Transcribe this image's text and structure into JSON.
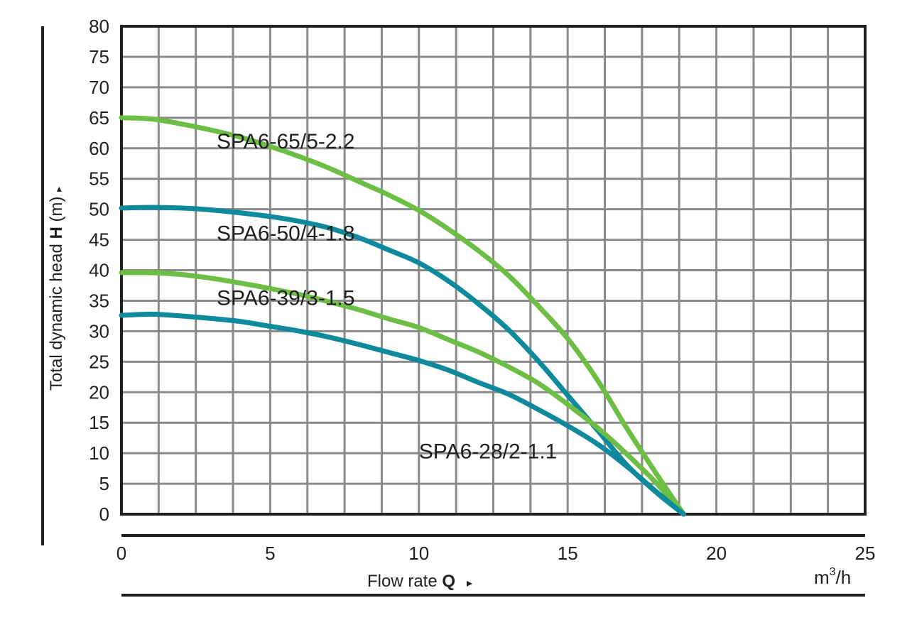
{
  "chart_data": {
    "type": "line",
    "x_axis": {
      "label_text": "Flow rate ",
      "label_symbol": "Q",
      "label_arrow": "▸",
      "unit_base": "m",
      "unit_sup": "3",
      "unit_tail": "/h",
      "range": [
        0,
        25
      ],
      "ticks": [
        0,
        5,
        10,
        15,
        20,
        25
      ],
      "grid_step": 1.25
    },
    "y_axis": {
      "label_text": "Total dynamic head ",
      "label_symbol": "H",
      "label_unit": " (m) ",
      "label_arrow": "▸",
      "range": [
        0,
        80
      ],
      "ticks": [
        0,
        5,
        10,
        15,
        20,
        25,
        30,
        35,
        40,
        45,
        50,
        55,
        60,
        65,
        70,
        75,
        80
      ],
      "grid_step": 5
    },
    "grid": true,
    "series": [
      {
        "name": "SPA6-65/5-2.2",
        "color": "#6cbe45",
        "points": [
          [
            0,
            65
          ],
          [
            1,
            64.8
          ],
          [
            2,
            64
          ],
          [
            3,
            63
          ],
          [
            4,
            61.8
          ],
          [
            5,
            60.3
          ],
          [
            6,
            58.6
          ],
          [
            7,
            56.7
          ],
          [
            8,
            54.5
          ],
          [
            9,
            52.3
          ],
          [
            10,
            49.8
          ],
          [
            11,
            46.7
          ],
          [
            12,
            43.2
          ],
          [
            13,
            39.2
          ],
          [
            14,
            34.2
          ],
          [
            15,
            28.8
          ],
          [
            16,
            22
          ],
          [
            17,
            14
          ],
          [
            18,
            6.5
          ],
          [
            18.9,
            0
          ]
        ]
      },
      {
        "name": "SPA6-50/4-1.8",
        "color": "#0f8a9c",
        "points": [
          [
            0,
            50.2
          ],
          [
            1,
            50.3
          ],
          [
            2,
            50.2
          ],
          [
            3,
            49.9
          ],
          [
            4,
            49.4
          ],
          [
            5,
            48.8
          ],
          [
            6,
            48
          ],
          [
            7,
            46.9
          ],
          [
            8,
            45.3
          ],
          [
            9,
            43.3
          ],
          [
            10,
            41.2
          ],
          [
            11,
            38.2
          ],
          [
            12,
            34.5
          ],
          [
            13,
            30.3
          ],
          [
            14,
            25.2
          ],
          [
            15,
            19.5
          ],
          [
            16,
            13.8
          ],
          [
            17,
            8
          ],
          [
            18,
            3.5
          ],
          [
            18.9,
            0
          ]
        ]
      },
      {
        "name": "SPA6-39/3-1.5",
        "color": "#6cbe45",
        "points": [
          [
            0,
            39.6
          ],
          [
            1,
            39.6
          ],
          [
            2,
            39.3
          ],
          [
            3,
            38.7
          ],
          [
            4,
            37.9
          ],
          [
            5,
            37
          ],
          [
            6,
            36
          ],
          [
            7,
            34.8
          ],
          [
            8,
            33.5
          ],
          [
            9,
            32
          ],
          [
            10,
            30.6
          ],
          [
            11,
            28.6
          ],
          [
            12,
            26.6
          ],
          [
            13,
            24.2
          ],
          [
            14,
            21.5
          ],
          [
            15,
            18
          ],
          [
            16,
            14.2
          ],
          [
            17,
            9.8
          ],
          [
            18,
            5
          ],
          [
            18.9,
            0
          ]
        ]
      },
      {
        "name": "SPA6-28/2-1.1",
        "color": "#0f8a9c",
        "points": [
          [
            0,
            32.6
          ],
          [
            1,
            32.8
          ],
          [
            2,
            32.5
          ],
          [
            3,
            32.1
          ],
          [
            4,
            31.6
          ],
          [
            5,
            30.8
          ],
          [
            6,
            30
          ],
          [
            7,
            29
          ],
          [
            8,
            27.8
          ],
          [
            9,
            26.5
          ],
          [
            10,
            25.2
          ],
          [
            11,
            23.6
          ],
          [
            12,
            21.6
          ],
          [
            13,
            19.7
          ],
          [
            14,
            17.2
          ],
          [
            15,
            14.5
          ],
          [
            16,
            11.5
          ],
          [
            17,
            7.8
          ],
          [
            18,
            3.6
          ],
          [
            18.9,
            0
          ]
        ]
      }
    ],
    "curve_labels": [
      {
        "series": "SPA6-65/5-2.2",
        "text": "SPA6-65/5-2.2",
        "x": 3.2,
        "y": 61.6
      },
      {
        "series": "SPA6-50/4-1.8",
        "text": "SPA6-50/4-1.8",
        "x": 3.2,
        "y": 46.5
      },
      {
        "series": "SPA6-39/3-1.5",
        "text": "SPA6-39/3-1.5",
        "x": 3.2,
        "y": 35.9
      },
      {
        "series": "SPA6-28/2-1.1",
        "text": "SPA6-28/2-1.1",
        "x": 10.0,
        "y": 10.8
      }
    ]
  }
}
